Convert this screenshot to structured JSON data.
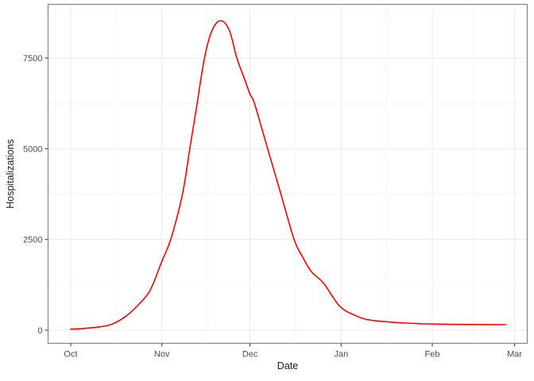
{
  "chart_data": {
    "type": "line",
    "title": "",
    "xlabel": "Date",
    "ylabel": "Hospitalizations",
    "legend": "none",
    "grid": "on",
    "x_axis": {
      "title": "Date",
      "unit": "days since Oct 1",
      "domain_days": [
        -7.7,
        155.3
      ],
      "ticks": [
        {
          "label": "Oct",
          "day": 0
        },
        {
          "label": "Nov",
          "day": 31
        },
        {
          "label": "Dec",
          "day": 61
        },
        {
          "label": "Jan",
          "day": 92
        },
        {
          "label": "Feb",
          "day": 123
        },
        {
          "label": "Mar",
          "day": 151
        }
      ],
      "minor_days": [
        15.5,
        46,
        76.5,
        107.5,
        137
      ]
    },
    "y_axis": {
      "title": "Hospitalizations",
      "domain": [
        -361,
        8978
      ],
      "ticks": [
        {
          "label": "0",
          "value": 0
        },
        {
          "label": "2500",
          "value": 2500
        },
        {
          "label": "5000",
          "value": 5000
        },
        {
          "label": "7500",
          "value": 7500
        }
      ],
      "minor_values": [
        1250,
        3750,
        6250,
        8750
      ]
    },
    "series": [
      {
        "name": "hospitalizations",
        "color": "#FF0000",
        "stroke_width": 1.6,
        "peak": {
          "day": 51,
          "value": 8530
        },
        "points": [
          [
            0,
            30
          ],
          [
            4,
            45
          ],
          [
            8,
            75
          ],
          [
            12,
            120
          ],
          [
            15,
            200
          ],
          [
            19,
            400
          ],
          [
            23,
            700
          ],
          [
            27,
            1100
          ],
          [
            31,
            1900
          ],
          [
            34,
            2500
          ],
          [
            38,
            3750
          ],
          [
            40.5,
            5000
          ],
          [
            43,
            6250
          ],
          [
            45.5,
            7500
          ],
          [
            48,
            8250
          ],
          [
            51,
            8530
          ],
          [
            54,
            8250
          ],
          [
            56.5,
            7500
          ],
          [
            59,
            6950
          ],
          [
            61,
            6500
          ],
          [
            62.5,
            6250
          ],
          [
            67,
            5000
          ],
          [
            71.5,
            3750
          ],
          [
            76,
            2500
          ],
          [
            79,
            2000
          ],
          [
            82,
            1600
          ],
          [
            86,
            1300
          ],
          [
            91.5,
            660
          ],
          [
            97,
            400
          ],
          [
            101,
            290
          ],
          [
            107,
            235
          ],
          [
            113,
            200
          ],
          [
            119,
            180
          ],
          [
            125,
            168
          ],
          [
            132,
            160
          ],
          [
            140,
            155
          ],
          [
            148,
            152
          ]
        ]
      }
    ],
    "colors": {
      "line": "#FF0000",
      "panel_background": "#FFFFFF",
      "grid_major": "#EBEBEB",
      "grid_minor": "#F6F6F6",
      "panel_border": "#858585",
      "tick_mark": "#333333",
      "tick_label": "#4D4D4D",
      "axis_title": "#1A1A1A"
    }
  }
}
